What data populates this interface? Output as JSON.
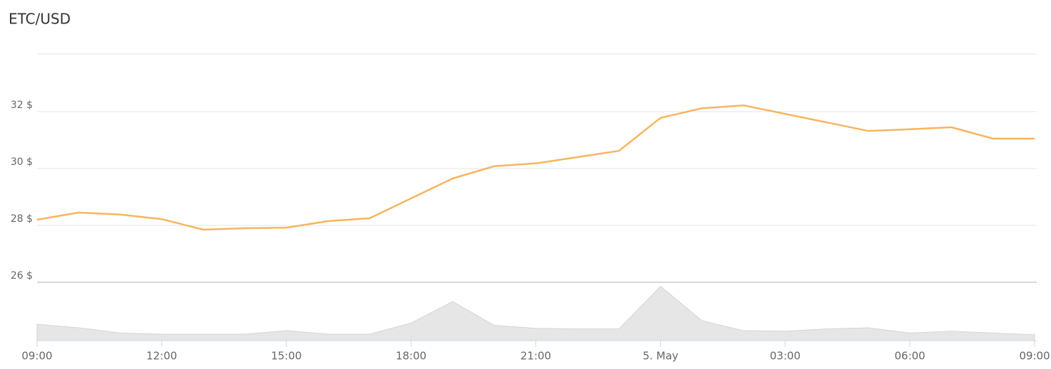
{
  "chart_data": {
    "type": "line",
    "title": "ETC/USD",
    "categories": [
      "09:00",
      null,
      null,
      "12:00",
      null,
      null,
      "15:00",
      null,
      null,
      "18:00",
      null,
      null,
      "21:00",
      null,
      null,
      "5. May",
      null,
      null,
      "03:00",
      null,
      null,
      "06:00",
      null,
      null,
      "09:00"
    ],
    "series": [
      {
        "color": "#f7b55e",
        "values": [
          28.2,
          28.45,
          28.38,
          28.22,
          27.85,
          27.9,
          27.92,
          28.15,
          28.25,
          28.95,
          29.65,
          30.08,
          30.18,
          30.4,
          30.62,
          31.78,
          32.12,
          32.22,
          31.92,
          31.62,
          31.32,
          31.38,
          31.45,
          31.05,
          31.05
        ]
      },
      {
        "color": "#e6e6e6",
        "kind": "area",
        "axis": "y2",
        "values": [
          28,
          22,
          13,
          11,
          11,
          11,
          17,
          11,
          11,
          30,
          67,
          26,
          21,
          20,
          20,
          93,
          34,
          17,
          16,
          20,
          22,
          13,
          16,
          13,
          10
        ]
      }
    ],
    "ylim": [
      26,
      34
    ],
    "yticks": [
      {
        "value": 26,
        "label": "26 $"
      },
      {
        "value": 28,
        "label": "28 $"
      },
      {
        "value": 30,
        "label": "30 $"
      },
      {
        "value": 32,
        "label": "32 $"
      }
    ],
    "y2lim": [
      0,
      100
    ],
    "grid": true
  }
}
